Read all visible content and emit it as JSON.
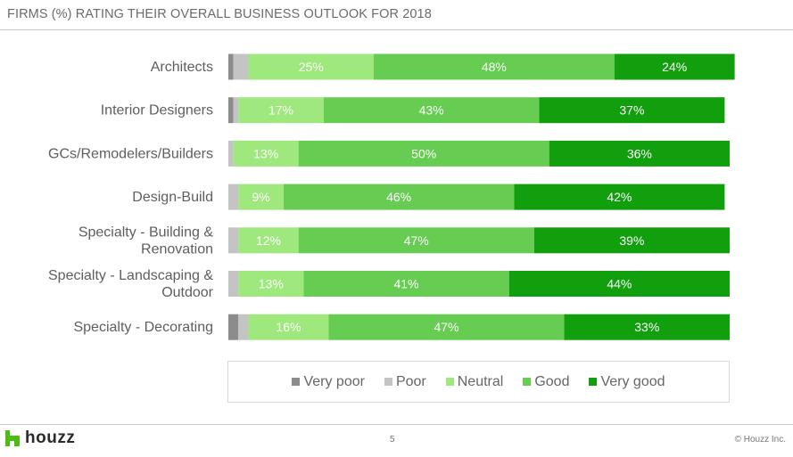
{
  "chart_data": {
    "type": "bar",
    "orientation": "horizontal-stacked-100",
    "title": "FIRMS (%) RATING THEIR OVERALL BUSINESS OUTLOOK FOR 2018",
    "categories": [
      "Architects",
      "Interior Designers",
      "GCs/Remodelers/Builders",
      "Design-Build",
      "Specialty - Building & Renovation",
      "Specialty - Landscaping & Outdoor",
      "Specialty - Decorating"
    ],
    "category_lines": [
      [
        "Architects"
      ],
      [
        "Interior Designers"
      ],
      [
        "GCs/Remodelers/Builders"
      ],
      [
        "Design-Build"
      ],
      [
        "Specialty - Building &",
        "Renovation"
      ],
      [
        "Specialty - Landscaping &",
        "Outdoor"
      ],
      [
        "Specialty - Decorating"
      ]
    ],
    "series": [
      {
        "name": "Very poor",
        "color": "#8c8c8c",
        "values": [
          1,
          1,
          0,
          0,
          0,
          0,
          2
        ],
        "show_labels": false
      },
      {
        "name": "Poor",
        "color": "#c4c4c4",
        "values": [
          3,
          1,
          1,
          2,
          2,
          2,
          2
        ],
        "show_labels": false
      },
      {
        "name": "Neutral",
        "color": "#9ee87d",
        "values": [
          25,
          17,
          13,
          9,
          12,
          13,
          16
        ],
        "show_labels": true
      },
      {
        "name": "Good",
        "color": "#66cc52",
        "values": [
          48,
          43,
          50,
          46,
          47,
          41,
          47
        ],
        "show_labels": true
      },
      {
        "name": "Very good",
        "color": "#119f0e",
        "values": [
          24,
          37,
          36,
          42,
          39,
          44,
          33
        ],
        "show_labels": true
      }
    ],
    "xlim": [
      0,
      100
    ],
    "value_suffix": "%",
    "legend_position": "bottom",
    "grid": false
  },
  "footer": {
    "logo_text": "houzz",
    "page_number": "5",
    "copyright": "© Houzz Inc."
  },
  "colors": {
    "logo_green": "#4dbc15"
  }
}
